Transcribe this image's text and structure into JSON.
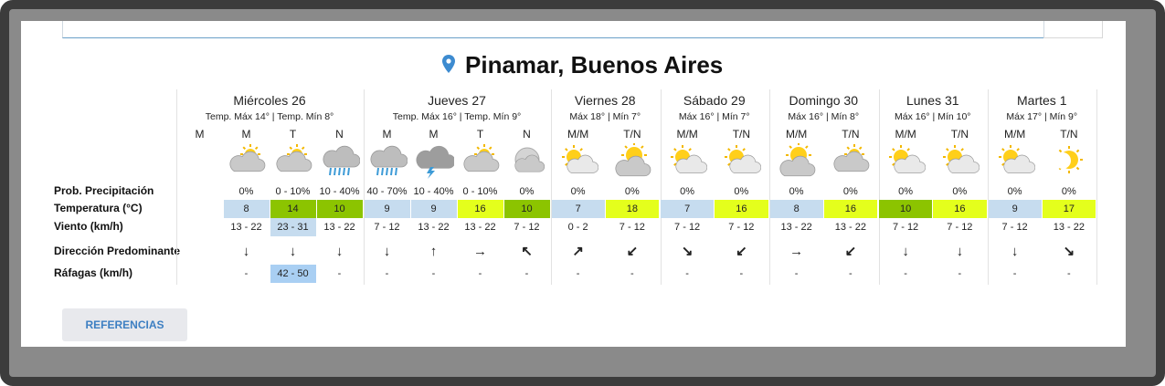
{
  "title": "Pinamar, Buenos Aires",
  "row_labels": [
    "Prob. Precipitación",
    "Temperatura (°C)",
    "Viento (km/h)",
    "Dirección Predominante",
    "Ráfagas (km/h)"
  ],
  "days": [
    {
      "name": "Miércoles 26",
      "summary": "Temp. Máx 14° | Temp. Mín 8°",
      "columns": [
        {
          "label": "M"
        },
        {
          "label": "M",
          "precip": "0%",
          "temp": {
            "text": "8",
            "bg": "#c6dcef"
          },
          "wind": {
            "text": "13 - 22"
          },
          "dir": "↓",
          "gust": {
            "text": "-"
          }
        },
        {
          "label": "T",
          "precip": "0 - 10%",
          "temp": {
            "text": "14",
            "bg": "#8cc400"
          },
          "wind": {
            "text": "23 - 31",
            "bg": "#c6dcef"
          },
          "dir": "↓",
          "gust": {
            "text": "42 - 50",
            "bg": "#a9cff3"
          }
        },
        {
          "label": "N",
          "precip": "10 - 40%",
          "temp": {
            "text": "10",
            "bg": "#8cc400"
          },
          "wind": {
            "text": "13 - 22"
          },
          "dir": "↓",
          "gust": {
            "text": "-"
          }
        }
      ]
    },
    {
      "name": "Jueves 27",
      "summary": "Temp. Máx 16° | Temp. Mín 9°",
      "columns": [
        {
          "label": "M",
          "precip": "40 - 70%",
          "temp": {
            "text": "9",
            "bg": "#c6dcef"
          },
          "wind": {
            "text": "7 - 12"
          },
          "dir": "↓",
          "gust": {
            "text": "-"
          }
        },
        {
          "label": "M",
          "precip": "10 - 40%",
          "temp": {
            "text": "9",
            "bg": "#c6dcef"
          },
          "wind": {
            "text": "13 - 22"
          },
          "dir": "↑",
          "gust": {
            "text": "-"
          }
        },
        {
          "label": "T",
          "precip": "0 - 10%",
          "temp": {
            "text": "16",
            "bg": "#e4ff1c"
          },
          "wind": {
            "text": "13 - 22"
          },
          "dir": "→",
          "gust": {
            "text": "-"
          }
        },
        {
          "label": "N",
          "precip": "0%",
          "temp": {
            "text": "10",
            "bg": "#8cc400"
          },
          "wind": {
            "text": "7 - 12"
          },
          "dir": "↖",
          "gust": {
            "text": "-"
          }
        }
      ]
    },
    {
      "name": "Viernes 28",
      "summary": "Máx 18° | Mín 7°",
      "columns": [
        {
          "label": "M/M",
          "precip": "0%",
          "temp": {
            "text": "7",
            "bg": "#c6dcef"
          },
          "wind": {
            "text": "0 - 2"
          },
          "dir": "↗",
          "gust": {
            "text": "-"
          }
        },
        {
          "label": "T/N",
          "precip": "0%",
          "temp": {
            "text": "18",
            "bg": "#e4ff1c"
          },
          "wind": {
            "text": "7 - 12"
          },
          "dir": "↙",
          "gust": {
            "text": "-"
          }
        }
      ]
    },
    {
      "name": "Sábado 29",
      "summary": "Máx 16° | Mín 7°",
      "columns": [
        {
          "label": "M/M",
          "precip": "0%",
          "temp": {
            "text": "7",
            "bg": "#c6dcef"
          },
          "wind": {
            "text": "7 - 12"
          },
          "dir": "↘",
          "gust": {
            "text": "-"
          }
        },
        {
          "label": "T/N",
          "precip": "0%",
          "temp": {
            "text": "16",
            "bg": "#e4ff1c"
          },
          "wind": {
            "text": "7 - 12"
          },
          "dir": "↙",
          "gust": {
            "text": "-"
          }
        }
      ]
    },
    {
      "name": "Domingo 30",
      "summary": "Máx 16° | Mín 8°",
      "columns": [
        {
          "label": "M/M",
          "precip": "0%",
          "temp": {
            "text": "8",
            "bg": "#c6dcef"
          },
          "wind": {
            "text": "13 - 22"
          },
          "dir": "→",
          "gust": {
            "text": "-"
          }
        },
        {
          "label": "T/N",
          "precip": "0%",
          "temp": {
            "text": "16",
            "bg": "#e4ff1c"
          },
          "wind": {
            "text": "13 - 22"
          },
          "dir": "↙",
          "gust": {
            "text": "-"
          }
        }
      ]
    },
    {
      "name": "Lunes 31",
      "summary": "Máx 16° | Mín 10°",
      "columns": [
        {
          "label": "M/M",
          "precip": "0%",
          "temp": {
            "text": "10",
            "bg": "#8cc400"
          },
          "wind": {
            "text": "7 - 12"
          },
          "dir": "↓",
          "gust": {
            "text": "-"
          }
        },
        {
          "label": "T/N",
          "precip": "0%",
          "temp": {
            "text": "16",
            "bg": "#e4ff1c"
          },
          "wind": {
            "text": "7 - 12"
          },
          "dir": "↓",
          "gust": {
            "text": "-"
          }
        }
      ]
    },
    {
      "name": "Martes 1",
      "summary": "Máx 17° | Mín 9°",
      "columns": [
        {
          "label": "M/M",
          "precip": "0%",
          "temp": {
            "text": "9",
            "bg": "#c6dcef"
          },
          "wind": {
            "text": "7 - 12"
          },
          "dir": "↓",
          "gust": {
            "text": "-"
          }
        },
        {
          "label": "T/N",
          "precip": "0%",
          "temp": {
            "text": "17",
            "bg": "#e4ff1c"
          },
          "wind": {
            "text": "13 - 22"
          },
          "dir": "↘",
          "gust": {
            "text": "-"
          }
        }
      ]
    }
  ],
  "button": "REFERENCIAS"
}
